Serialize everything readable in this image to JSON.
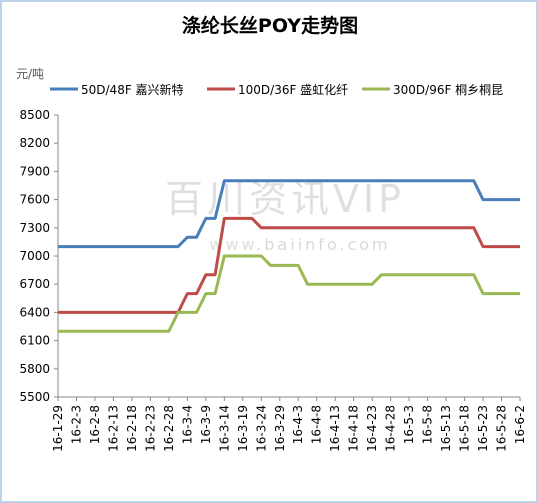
{
  "chart_data": {
    "type": "line",
    "title": "涤纶长丝POY走势图",
    "y_unit": "元/吨",
    "watermark": [
      "百川资讯VIP",
      "www.baiinfo.com"
    ],
    "categories": [
      "16-1-29",
      null,
      "16-2-3",
      null,
      "16-2-8",
      null,
      "16-2-13",
      null,
      "16-2-18",
      null,
      "16-2-23",
      null,
      "16-2-28",
      null,
      "16-3-4",
      null,
      "16-3-9",
      null,
      "16-3-14",
      null,
      "16-3-19",
      null,
      "16-3-24",
      null,
      "16-3-29",
      null,
      "16-4-3",
      null,
      "16-4-8",
      null,
      "16-4-13",
      null,
      "16-4-18",
      null,
      "16-4-23",
      null,
      "16-4-28",
      null,
      "16-5-3",
      null,
      "16-5-8",
      null,
      "16-5-13",
      null,
      "16-5-18",
      null,
      "16-5-23",
      null,
      "16-5-28",
      null,
      "16-6-2"
    ],
    "series": [
      {
        "name": "50D/48F 嘉兴新特",
        "color": "#4a7ebb",
        "values": [
          7100,
          7100,
          7100,
          7100,
          7100,
          7100,
          7100,
          7100,
          7100,
          7100,
          7100,
          7100,
          7100,
          7100,
          7200,
          7200,
          7400,
          7400,
          7800,
          7800,
          7800,
          7800,
          7800,
          7800,
          7800,
          7800,
          7800,
          7800,
          7800,
          7800,
          7800,
          7800,
          7800,
          7800,
          7800,
          7800,
          7800,
          7800,
          7800,
          7800,
          7800,
          7800,
          7800,
          7800,
          7800,
          7800,
          7600,
          7600,
          7600,
          7600,
          7600
        ]
      },
      {
        "name": "100D/36F 盛虹化纤",
        "color": "#be4b48",
        "values": [
          6400,
          6400,
          6400,
          6400,
          6400,
          6400,
          6400,
          6400,
          6400,
          6400,
          6400,
          6400,
          6400,
          6400,
          6600,
          6600,
          6800,
          6800,
          7400,
          7400,
          7400,
          7400,
          7300,
          7300,
          7300,
          7300,
          7300,
          7300,
          7300,
          7300,
          7300,
          7300,
          7300,
          7300,
          7300,
          7300,
          7300,
          7300,
          7300,
          7300,
          7300,
          7300,
          7300,
          7300,
          7300,
          7300,
          7100,
          7100,
          7100,
          7100,
          7100
        ]
      },
      {
        "name": "300D/96F 桐乡桐昆",
        "color": "#98b954",
        "values": [
          6200,
          6200,
          6200,
          6200,
          6200,
          6200,
          6200,
          6200,
          6200,
          6200,
          6200,
          6200,
          6200,
          6400,
          6400,
          6400,
          6600,
          6600,
          7000,
          7000,
          7000,
          7000,
          7000,
          6900,
          6900,
          6900,
          6900,
          6700,
          6700,
          6700,
          6700,
          6700,
          6700,
          6700,
          6700,
          6800,
          6800,
          6800,
          6800,
          6800,
          6800,
          6800,
          6800,
          6800,
          6800,
          6800,
          6600,
          6600,
          6600,
          6600,
          6600
        ]
      }
    ],
    "ylim": [
      5500,
      8500
    ],
    "yticks": [
      5500,
      5800,
      6100,
      6400,
      6700,
      7000,
      7300,
      7600,
      7900,
      8200,
      8500
    ]
  }
}
